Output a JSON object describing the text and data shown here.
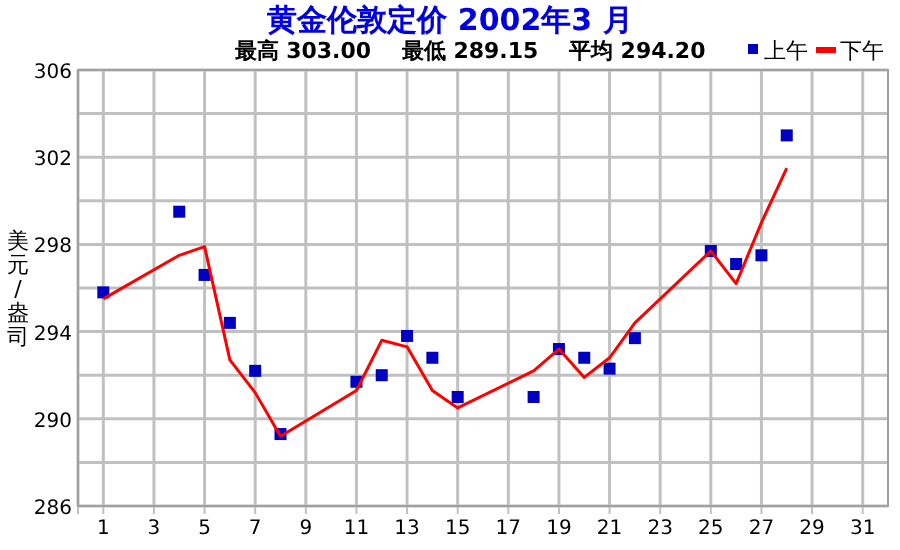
{
  "chart_data": {
    "type": "line",
    "title": "黄金伦敦定价 2002年3 月",
    "subtitle": "最高 303.00    最低 289.15    平均 294.20",
    "ylabel": "美元/盎司",
    "x": [
      1,
      4,
      5,
      6,
      7,
      8,
      11,
      12,
      13,
      14,
      15,
      18,
      19,
      20,
      21,
      22,
      25,
      26,
      27,
      28
    ],
    "series": [
      {
        "name": "上午",
        "type": "scatter",
        "marker": "square",
        "color": "#0000c0",
        "values": [
          295.8,
          299.5,
          296.6,
          294.4,
          292.2,
          289.3,
          291.7,
          292.0,
          293.8,
          292.8,
          291.0,
          291.0,
          293.2,
          292.8,
          292.3,
          293.7,
          297.7,
          297.1,
          297.5,
          303.0
        ]
      },
      {
        "name": "下午",
        "marker": "none",
        "color": "#ff0000",
        "values": [
          295.5,
          297.5,
          297.9,
          292.7,
          291.2,
          289.2,
          291.3,
          293.6,
          293.3,
          291.3,
          290.5,
          292.2,
          293.2,
          291.9,
          292.8,
          294.4,
          297.7,
          296.2,
          299.0,
          301.5
        ]
      }
    ],
    "xlim": [
      0,
      32
    ],
    "xticks": [
      {
        "value": 0,
        "label": null
      },
      1,
      3,
      5,
      7,
      9,
      11,
      13,
      15,
      17,
      19,
      21,
      23,
      25,
      27,
      29,
      31
    ],
    "ylim": [
      286,
      306
    ],
    "yticks": [
      286,
      {
        "value": 288,
        "label": null
      },
      290,
      {
        "value": 292,
        "label": null
      },
      294,
      {
        "value": 296,
        "label": null
      },
      298,
      {
        "value": 300,
        "label": null
      },
      302,
      {
        "value": 304,
        "label": null
      },
      306
    ],
    "grid": true,
    "legend": "top right"
  }
}
